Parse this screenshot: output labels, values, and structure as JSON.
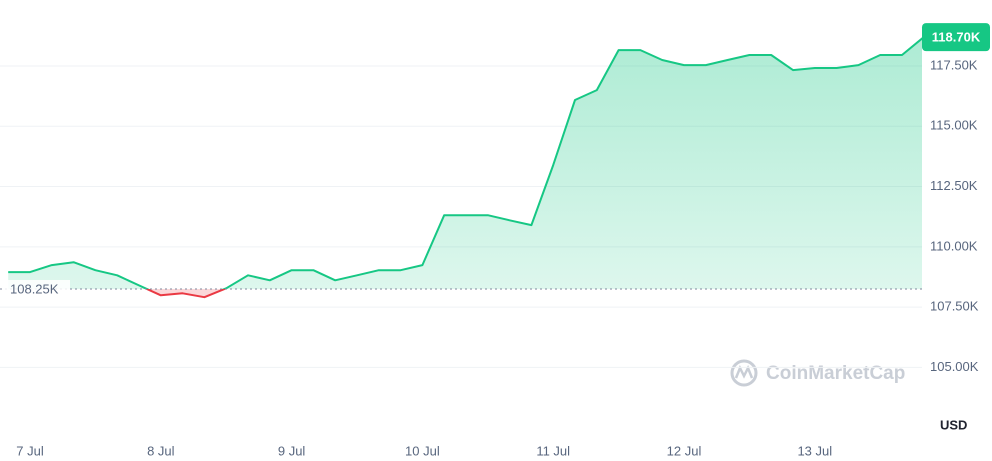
{
  "chart_data": {
    "type": "line",
    "categories": [
      null,
      "7 Jul",
      null,
      null,
      null,
      null,
      null,
      "8 Jul",
      null,
      null,
      null,
      null,
      null,
      "9 Jul",
      null,
      null,
      null,
      null,
      null,
      "10 Jul",
      null,
      null,
      null,
      null,
      null,
      "11 Jul",
      null,
      null,
      null,
      null,
      null,
      "12 Jul",
      null,
      null,
      null,
      null,
      null,
      "13 Jul",
      null,
      null,
      null,
      null,
      null
    ],
    "values": [
      108950,
      108950,
      109240,
      109360,
      109030,
      108820,
      108400,
      107990,
      108070,
      107910,
      108280,
      108820,
      108610,
      109030,
      109030,
      108610,
      108820,
      109030,
      109030,
      109240,
      111310,
      111310,
      111310,
      111100,
      110900,
      113390,
      116090,
      116500,
      118160,
      118160,
      117750,
      117540,
      117540,
      117750,
      117960,
      117960,
      117330,
      117420,
      117420,
      117540,
      117960,
      117960,
      118700
    ],
    "color": "#16c784",
    "below_color": "#ea3943",
    "ylim": [
      102400,
      120240
    ],
    "yticks": [
      {
        "value": 105000,
        "label": "105.00K"
      },
      {
        "value": 107500,
        "label": "107.50K"
      },
      {
        "value": 110000,
        "label": "110.00K"
      },
      {
        "value": 112500,
        "label": "112.50K"
      },
      {
        "value": 115000,
        "label": "115.00K"
      },
      {
        "value": 117500,
        "label": "117.50K"
      }
    ],
    "grid": true,
    "reference": {
      "value": 108250,
      "label": "108.25K"
    },
    "current_price": {
      "value": 118700,
      "label": "118.70K"
    },
    "y_axis_label": "USD",
    "watermark": "CoinMarketCap"
  }
}
